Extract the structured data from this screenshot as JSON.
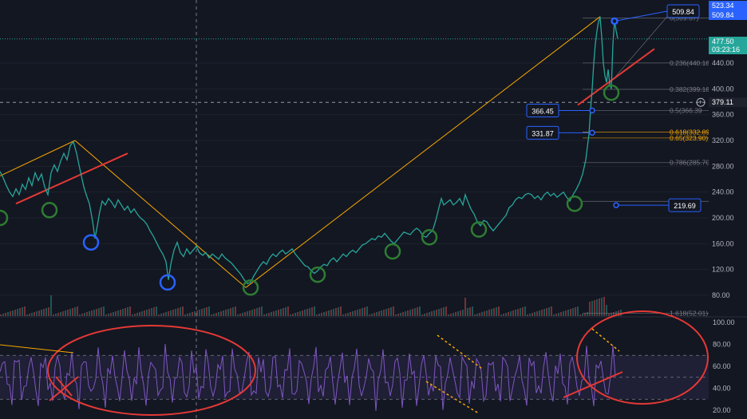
{
  "chart_data": [
    {
      "type": "line",
      "series": [
        {
          "values": [
            [
              0,
              272
            ],
            [
              4,
              262
            ],
            [
              8,
              250
            ],
            [
              12,
              240
            ],
            [
              16,
              233
            ],
            [
              20,
              245
            ],
            [
              24,
              236
            ],
            [
              28,
              252
            ],
            [
              32,
              244
            ],
            [
              36,
              262
            ],
            [
              40,
              250
            ],
            [
              44,
              270
            ],
            [
              48,
              258
            ],
            [
              52,
              268
            ],
            [
              56,
              248
            ],
            [
              60,
              236
            ],
            [
              64,
              270
            ],
            [
              68,
              282
            ],
            [
              72,
              272
            ],
            [
              76,
              288
            ],
            [
              80,
              300
            ],
            [
              84,
              290
            ],
            [
              88,
              312
            ],
            [
              92,
              318
            ],
            [
              96,
              300
            ],
            [
              99,
              282
            ],
            [
              102,
              265
            ],
            [
              105,
              248
            ],
            [
              108,
              236
            ],
            [
              112,
              222
            ],
            [
              116,
              195
            ],
            [
              119,
              168
            ],
            [
              122,
              188
            ],
            [
              125,
              210
            ],
            [
              128,
              226
            ],
            [
              132,
              220
            ],
            [
              136,
              230
            ],
            [
              140,
              224
            ],
            [
              144,
              216
            ],
            [
              148,
              228
            ],
            [
              152,
              220
            ],
            [
              156,
              212
            ],
            [
              160,
              218
            ],
            [
              164,
              208
            ],
            [
              168,
              214
            ],
            [
              172,
              206
            ],
            [
              176,
              200
            ],
            [
              180,
              196
            ],
            [
              184,
              190
            ],
            [
              188,
              180
            ],
            [
              192,
              172
            ],
            [
              196,
              162
            ],
            [
              200,
              152
            ],
            [
              204,
              144
            ],
            [
              208,
              132
            ],
            [
              211,
              104
            ],
            [
              214,
              128
            ],
            [
              218,
              150
            ],
            [
              222,
              162
            ],
            [
              226,
              146
            ],
            [
              230,
              140
            ],
            [
              234,
              152
            ],
            [
              238,
              144
            ],
            [
              242,
              150
            ],
            [
              246,
              156
            ],
            [
              250,
              146
            ],
            [
              254,
              142
            ],
            [
              258,
              146
            ],
            [
              262,
              138
            ],
            [
              266,
              144
            ],
            [
              270,
              140
            ],
            [
              274,
              136
            ],
            [
              278,
              144
            ],
            [
              282,
              138
            ],
            [
              286,
              134
            ],
            [
              290,
              130
            ],
            [
              294,
              124
            ],
            [
              298,
              118
            ],
            [
              302,
              112
            ],
            [
              306,
              104
            ],
            [
              310,
              98
            ],
            [
              314,
              100
            ],
            [
              318,
              110
            ],
            [
              322,
              118
            ],
            [
              326,
              126
            ],
            [
              330,
              132
            ],
            [
              334,
              128
            ],
            [
              338,
              138
            ],
            [
              342,
              144
            ],
            [
              346,
              140
            ],
            [
              350,
              146
            ],
            [
              354,
              150
            ],
            [
              358,
              144
            ],
            [
              362,
              148
            ],
            [
              366,
              152
            ],
            [
              370,
              144
            ],
            [
              374,
              138
            ],
            [
              378,
              132
            ],
            [
              382,
              126
            ],
            [
              386,
              124
            ],
            [
              390,
              118
            ],
            [
              394,
              114
            ],
            [
              398,
              118
            ],
            [
              402,
              124
            ],
            [
              406,
              128
            ],
            [
              410,
              126
            ],
            [
              414,
              134
            ],
            [
              418,
              138
            ],
            [
              422,
              132
            ],
            [
              426,
              138
            ],
            [
              430,
              144
            ],
            [
              434,
              140
            ],
            [
              438,
              146
            ],
            [
              442,
              150
            ],
            [
              446,
              146
            ],
            [
              450,
              152
            ],
            [
              454,
              158
            ],
            [
              458,
              160
            ],
            [
              462,
              164
            ],
            [
              466,
              168
            ],
            [
              470,
              166
            ],
            [
              474,
              172
            ],
            [
              478,
              170
            ],
            [
              482,
              176
            ],
            [
              486,
              170
            ],
            [
              490,
              164
            ],
            [
              494,
              160
            ],
            [
              498,
              166
            ],
            [
              502,
              172
            ],
            [
              506,
              178
            ],
            [
              510,
              176
            ],
            [
              514,
              174
            ],
            [
              518,
              180
            ],
            [
              522,
              184
            ],
            [
              526,
              180
            ],
            [
              530,
              172
            ],
            [
              534,
              170
            ],
            [
              538,
              176
            ],
            [
              542,
              180
            ],
            [
              546,
              196
            ],
            [
              550,
              216
            ],
            [
              553,
              230
            ],
            [
              556,
              220
            ],
            [
              560,
              224
            ],
            [
              564,
              228
            ],
            [
              568,
              220
            ],
            [
              572,
              224
            ],
            [
              576,
              230
            ],
            [
              580,
              220
            ],
            [
              583,
              236
            ],
            [
              586,
              226
            ],
            [
              590,
              214
            ],
            [
              594,
              206
            ],
            [
              598,
              194
            ],
            [
              602,
              188
            ],
            [
              606,
              196
            ],
            [
              610,
              194
            ],
            [
              614,
              186
            ],
            [
              618,
              180
            ],
            [
              622,
              186
            ],
            [
              626,
              192
            ],
            [
              630,
              198
            ],
            [
              634,
              204
            ],
            [
              638,
              216
            ],
            [
              642,
              220
            ],
            [
              646,
              228
            ],
            [
              650,
              232
            ],
            [
              654,
              230
            ],
            [
              658,
              236
            ],
            [
              662,
              238
            ],
            [
              666,
              236
            ],
            [
              670,
              230
            ],
            [
              674,
              234
            ],
            [
              678,
              228
            ],
            [
              682,
              236
            ],
            [
              686,
              240
            ],
            [
              690,
              234
            ],
            [
              694,
              238
            ],
            [
              698,
              232
            ],
            [
              702,
              236
            ],
            [
              706,
              240
            ],
            [
              710,
              232
            ],
            [
              714,
              226
            ],
            [
              718,
              236
            ],
            [
              722,
              244
            ],
            [
              726,
              254
            ],
            [
              730,
              268
            ],
            [
              734,
              290
            ],
            [
              738,
              330
            ],
            [
              740,
              368
            ],
            [
              742,
              400
            ],
            [
              744,
              440
            ],
            [
              746,
              470
            ],
            [
              748,
              490
            ],
            [
              750,
              505
            ],
            [
              752,
              510
            ],
            [
              754,
              480
            ],
            [
              756,
              440
            ],
            [
              758,
              420
            ],
            [
              760,
              410
            ],
            [
              762,
              430
            ],
            [
              764,
              408
            ],
            [
              766,
              400
            ],
            [
              768,
              470
            ],
            [
              770,
              506
            ],
            [
              772,
              490
            ],
            [
              774,
              478
            ]
          ]
        }
      ],
      "ylim": [
        40,
        530
      ],
      "yticks": [
        "440.00",
        "400.00",
        "360.00",
        "320.00",
        "280.00",
        "240.00",
        "200.00",
        "160.00",
        "120.00",
        "80.00"
      ],
      "price_badges": [
        {
          "text": "523.34",
          "value": 523.34,
          "color": "#2962ff"
        },
        {
          "text": "509.84",
          "value": 509.84,
          "color": "#2962ff"
        },
        {
          "text": "477.50",
          "sub": "03:23:16",
          "value": 477.5,
          "color": "#26a69a"
        },
        {
          "text": "379.11",
          "value": 379.11,
          "color": "#1e222d"
        }
      ],
      "fib_levels": [
        {
          "label": "0(509.67)",
          "value": 509.67,
          "color": "#787b86"
        },
        {
          "label": "0.236(440.18",
          "value": 440.18,
          "color": "#787b86"
        },
        {
          "label": "0.382(399.18",
          "value": 399.18,
          "color": "#787b86"
        },
        {
          "label": "0.5(366.39",
          "value": 366.39,
          "color": "#787b86"
        },
        {
          "label": "0.618(332.89",
          "value": 332.89,
          "color": "#f7a600"
        },
        {
          "label": "0.65(323.90)",
          "value": 323.9,
          "color": "#f7a600"
        },
        {
          "label": "0.786(285.70",
          "value": 285.7,
          "color": "#787b86"
        },
        {
          "label": "1(225.60)",
          "value": 225.6,
          "color": "#787b86"
        },
        {
          "label": "1.618(52.01)",
          "value": 52.01,
          "color": "#787b86"
        }
      ],
      "callouts": [
        {
          "text": "509.84",
          "value": 509.84
        },
        {
          "text": "366.45",
          "value": 366.45
        },
        {
          "text": "331.87",
          "value": 331.87
        },
        {
          "text": "219.69",
          "value": 219.69
        }
      ],
      "circles": [
        {
          "x": 0,
          "price": 200,
          "color": "green"
        },
        {
          "x": 62,
          "price": 212,
          "color": "green"
        },
        {
          "x": 114,
          "price": 162,
          "color": "blue"
        },
        {
          "x": 210,
          "price": 100,
          "color": "blue"
        },
        {
          "x": 314,
          "price": 92,
          "color": "green"
        },
        {
          "x": 398,
          "price": 112,
          "color": "green"
        },
        {
          "x": 492,
          "price": 148,
          "color": "green"
        },
        {
          "x": 538,
          "price": 170,
          "color": "green"
        },
        {
          "x": 600,
          "price": 182,
          "color": "green"
        },
        {
          "x": 720,
          "price": 222,
          "color": "green"
        },
        {
          "x": 766,
          "price": 394,
          "color": "green"
        }
      ],
      "colors": {
        "line": "#26a69a",
        "trend": "#f7a600",
        "marker": "#e53935",
        "bg": "#131722"
      }
    },
    {
      "type": "line",
      "ylim": [
        10,
        105
      ],
      "yticks": [
        "100.00",
        "80.00",
        "60.00",
        "40.00",
        "20.00"
      ],
      "bands": {
        "upper": 70,
        "middle": 50,
        "lower": 30
      },
      "colors": {
        "line": "#7e57c2",
        "band": "#7e57c2"
      }
    }
  ]
}
